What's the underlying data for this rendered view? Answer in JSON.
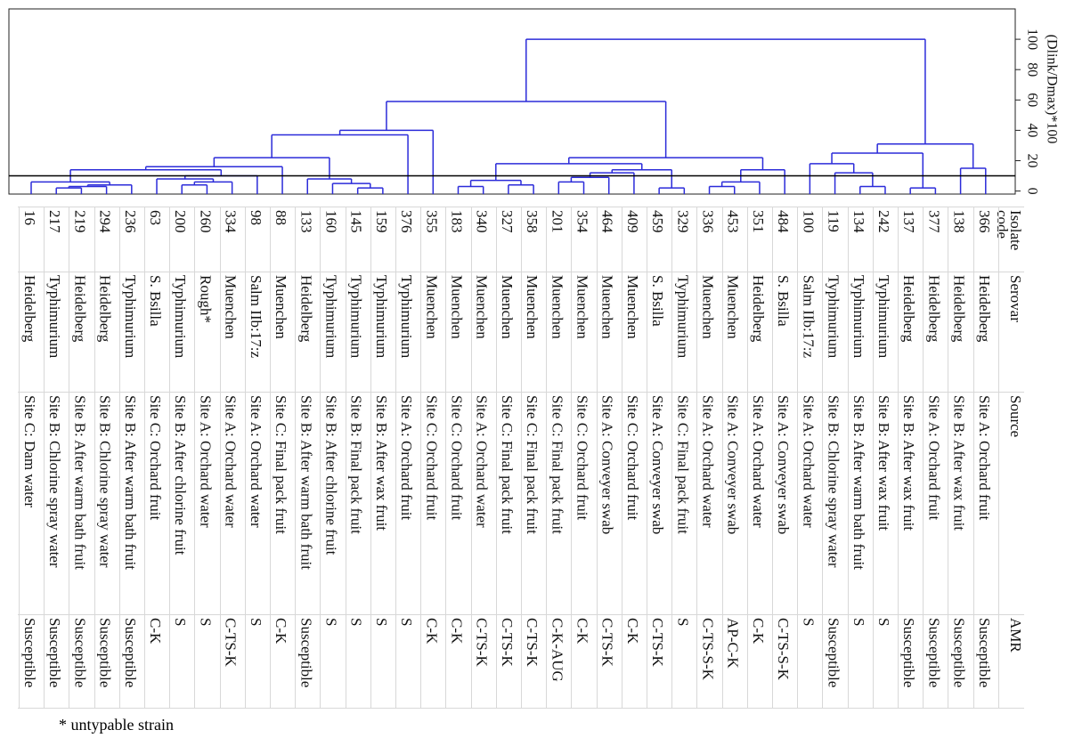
{
  "chart_data": {
    "type": "dendrogram",
    "y_label": "(Dlink/Dmax)*100",
    "ylim": [
      -2,
      120
    ],
    "yticks": [
      0,
      20,
      40,
      60,
      80,
      100
    ],
    "cutoff": 10,
    "color": "#2b2bd9",
    "merges": [
      [
        1,
        2,
        2
      ],
      [
        39,
        3,
        3
      ],
      [
        40,
        4,
        4
      ],
      [
        0,
        41,
        6
      ],
      [
        6,
        7,
        4
      ],
      [
        43,
        8,
        6
      ],
      [
        5,
        44,
        8
      ],
      [
        45,
        9,
        10
      ],
      [
        42,
        46,
        14
      ],
      [
        47,
        10,
        16
      ],
      [
        13,
        14,
        2
      ],
      [
        12,
        49,
        5
      ],
      [
        11,
        50,
        8
      ],
      [
        48,
        51,
        22
      ],
      [
        52,
        15,
        37
      ],
      [
        53,
        16,
        40
      ],
      [
        17,
        18,
        3
      ],
      [
        19,
        20,
        4
      ],
      [
        55,
        56,
        7
      ],
      [
        21,
        22,
        6
      ],
      [
        58,
        23,
        9
      ],
      [
        59,
        24,
        12
      ],
      [
        25,
        26,
        2
      ],
      [
        60,
        61,
        14
      ],
      [
        57,
        62,
        18
      ],
      [
        27,
        28,
        3
      ],
      [
        64,
        29,
        6
      ],
      [
        65,
        30,
        14
      ],
      [
        63,
        66,
        22
      ],
      [
        54,
        67,
        59
      ],
      [
        33,
        34,
        3
      ],
      [
        32,
        69,
        12
      ],
      [
        31,
        70,
        18
      ],
      [
        35,
        36,
        2
      ],
      [
        71,
        72,
        25
      ],
      [
        37,
        38,
        15
      ],
      [
        73,
        74,
        31
      ],
      [
        68,
        75,
        100
      ]
    ]
  },
  "table": {
    "header": [
      "Isolate code",
      "Serovar",
      "Source",
      "AMR"
    ],
    "rows": [
      [
        "16",
        "Heidelberg",
        "Site C: Dam water",
        "Susceptible"
      ],
      [
        "217",
        "Typhimurium",
        "Site B: Chlorine spray water",
        "Susceptible"
      ],
      [
        "219",
        "Heidelberg",
        "Site B: After warm bath fruit",
        "Susceptible"
      ],
      [
        "294",
        "Heidelberg",
        "Site B: Chlorine spray water",
        "Susceptible"
      ],
      [
        "236",
        "Typhimurium",
        "Site B: After warm bath fruit",
        "Susceptible"
      ],
      [
        "63",
        "S. Bsilla",
        "Site C: Orchard fruit",
        "C-K"
      ],
      [
        "200",
        "Typhimurium",
        "Site B: After chlorine fruit",
        "S"
      ],
      [
        "260",
        "Rough*",
        "Site A: Orchard water",
        "S"
      ],
      [
        "334",
        "Muenchen",
        "Site A: Orchard water",
        "C-TS-K"
      ],
      [
        "98",
        "Salm IIb:17:z",
        "Site A: Orchard water",
        "S"
      ],
      [
        "88",
        "Muenchen",
        "Site C: Final pack fruit",
        "C-K"
      ],
      [
        "133",
        "Heidelberg",
        "Site B: After warm bath fruit",
        "Susceptible"
      ],
      [
        "160",
        "Typhimurium",
        "Site B: After chlorine fruit",
        "S"
      ],
      [
        "145",
        "Typhimurium",
        "Site B: Final pack fruit",
        "S"
      ],
      [
        "159",
        "Typhimurium",
        "Site B: After wax fruit",
        "S"
      ],
      [
        "376",
        "Typhimurium",
        "Site A: Orchard fruit",
        "S"
      ],
      [
        "355",
        "Muenchen",
        "Site C: Orchard fruit",
        "C-K"
      ],
      [
        "183",
        "Muenchen",
        "Site C: Orchard fruit",
        "C-K"
      ],
      [
        "340",
        "Muenchen",
        "Site A: Orchard water",
        "C-TS-K"
      ],
      [
        "327",
        "Muenchen",
        "Site C: Final pack fruit",
        "C-TS-K"
      ],
      [
        "358",
        "Muenchen",
        "Site C: Final pack fruit",
        "C-TS-K"
      ],
      [
        "201",
        "Muenchen",
        "Site C: Final pack fruit",
        "C-K-AUG"
      ],
      [
        "354",
        "Muenchen",
        "Site C: Orchard fruit",
        "C-K"
      ],
      [
        "464",
        "Muenchen",
        "Site A: Conveyer swab",
        "C-TS-K"
      ],
      [
        "409",
        "Muenchen",
        "Site C: Orchard fruit",
        "C-K"
      ],
      [
        "459",
        "S. Bsilla",
        "Site A: Conveyer swab",
        "C-TS-K"
      ],
      [
        "329",
        "Typhimurium",
        "Site C: Final pack fruit",
        "S"
      ],
      [
        "336",
        "Muenchen",
        "Site A: Orchard water",
        "C-TS-S-K"
      ],
      [
        "453",
        "Muenchen",
        "Site A: Conveyer swab",
        "AP-C-K"
      ],
      [
        "351",
        "Heidelberg",
        "Site A: Orchard water",
        "C-K"
      ],
      [
        "484",
        "S. Bsilla",
        "Site A: Conveyer swab",
        "C-TS-S-K"
      ],
      [
        "100",
        "Salm IIb:17:z",
        "Site A: Orchard water",
        "S"
      ],
      [
        "119",
        "Typhimurium",
        "Site B: Chlorine spray water",
        "Susceptible"
      ],
      [
        "134",
        "Typhimurium",
        "Site B: After warm bath fruit",
        "S"
      ],
      [
        "242",
        "Typhimurium",
        "Site B: After wax fruit",
        "S"
      ],
      [
        "137",
        "Heidelberg",
        "Site B: After wax fruit",
        "Susceptible"
      ],
      [
        "377",
        "Heidelberg",
        "Site A: Orchard fruit",
        "Susceptible"
      ],
      [
        "138",
        "Heidelberg",
        "Site B: After wax fruit",
        "Susceptible"
      ],
      [
        "366",
        "Heidelberg",
        "Site A: Orchard fruit",
        "Susceptible"
      ]
    ]
  },
  "footnote": "* untypable strain"
}
